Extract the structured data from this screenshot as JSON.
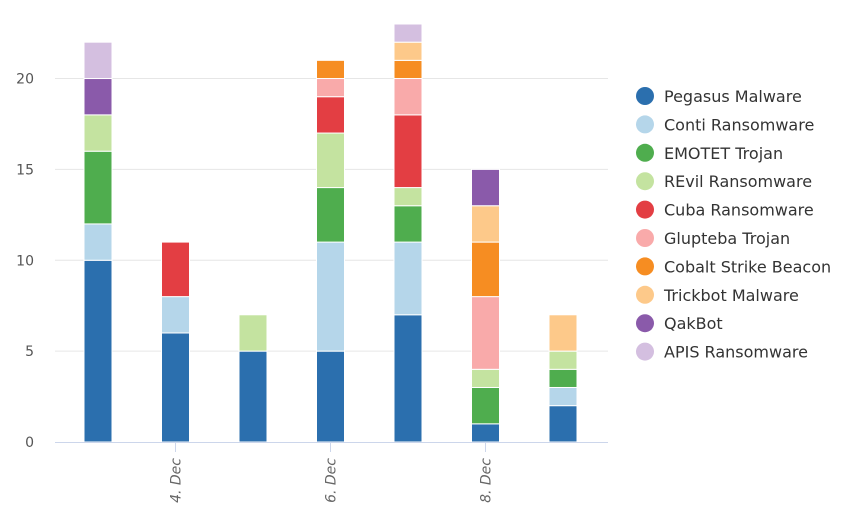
{
  "chart_data": {
    "type": "bar",
    "stacked": true,
    "x_positions": [
      0,
      1,
      2,
      3,
      4,
      5,
      6
    ],
    "x_tick_labels": [
      {
        "pos": 1,
        "label": "4. Dec"
      },
      {
        "pos": 3,
        "label": "6. Dec"
      },
      {
        "pos": 5,
        "label": "8. Dec"
      }
    ],
    "ylim": [
      0,
      23
    ],
    "yticks": [
      0,
      5,
      10,
      15,
      20
    ],
    "grid": true,
    "legend_position": "right",
    "series": [
      {
        "name": "Pegasus Malware",
        "color": "#2b6fae",
        "values": [
          10,
          6,
          5,
          5,
          7,
          1,
          2
        ]
      },
      {
        "name": "Conti Ransomware",
        "color": "#b5d6ea",
        "values": [
          2,
          2,
          0,
          6,
          4,
          0,
          1
        ]
      },
      {
        "name": "EMOTET Trojan",
        "color": "#4fad4e",
        "values": [
          4,
          0,
          0,
          3,
          2,
          2,
          1
        ]
      },
      {
        "name": "REvil Ransomware",
        "color": "#c4e3a0",
        "values": [
          2,
          0,
          2,
          3,
          1,
          1,
          1
        ]
      },
      {
        "name": "Cuba Ransomware",
        "color": "#e33e43",
        "values": [
          0,
          3,
          0,
          2,
          4,
          0,
          0
        ]
      },
      {
        "name": "Glupteba Trojan",
        "color": "#f9aaaa",
        "values": [
          0,
          0,
          0,
          1,
          2,
          4,
          0
        ]
      },
      {
        "name": "Cobalt Strike Beacon",
        "color": "#f68d22",
        "values": [
          0,
          0,
          0,
          1,
          1,
          3,
          0
        ]
      },
      {
        "name": "Trickbot Malware",
        "color": "#fdc98a",
        "values": [
          0,
          0,
          0,
          0,
          1,
          2,
          2
        ]
      },
      {
        "name": "QakBot",
        "color": "#8a5aaa",
        "values": [
          2,
          0,
          0,
          0,
          0,
          2,
          0
        ]
      },
      {
        "name": "APIS Ransomware",
        "color": "#d4bfe0",
        "values": [
          2,
          0,
          0,
          0,
          1,
          0,
          0
        ]
      }
    ]
  }
}
